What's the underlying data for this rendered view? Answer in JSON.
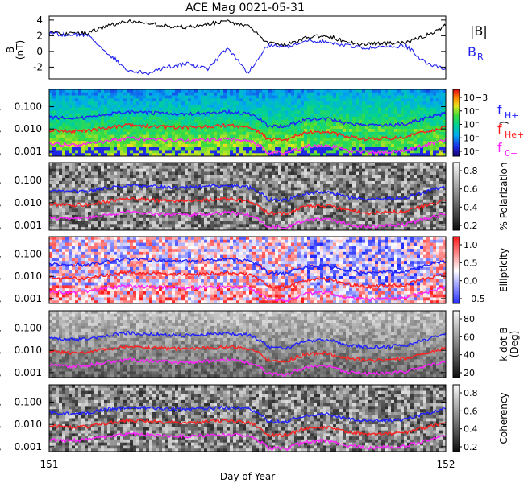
{
  "chart_data": {
    "title": "ACE Mag 0021-05-31",
    "xlabel": "Day of Year",
    "x_range": [
      151,
      152
    ],
    "x_tick_labels": [
      "151",
      "152"
    ],
    "panels": [
      {
        "type": "line",
        "ylabel": "B\n(nT)",
        "ylim": [
          -3.5,
          4.5
        ],
        "y_tick_labels": [
          "4",
          "2",
          "0",
          "-2"
        ],
        "legend": [
          {
            "label": "|B|",
            "color": "#000000"
          },
          {
            "label": "B",
            "sub": "R",
            "color": "#2222ee"
          }
        ],
        "series": [
          {
            "name": "|B|",
            "color": "#000000",
            "x": [
              151.0,
              151.05,
              151.1,
              151.15,
              151.2,
              151.25,
              151.3,
              151.35,
              151.4,
              151.45,
              151.5,
              151.55,
              151.6,
              151.65,
              151.7,
              151.75,
              151.8,
              151.85,
              151.9,
              151.95,
              152.0
            ],
            "y": [
              2.5,
              2.2,
              2.4,
              3.3,
              3.9,
              3.6,
              3.2,
              3.1,
              3.5,
              3.8,
              3.3,
              1.0,
              0.8,
              1.8,
              2.0,
              1.2,
              0.9,
              1.0,
              1.1,
              2.0,
              3.3
            ]
          },
          {
            "name": "B_R",
            "color": "#2222ee",
            "x": [
              151.0,
              151.05,
              151.1,
              151.15,
              151.2,
              151.25,
              151.3,
              151.35,
              151.4,
              151.45,
              151.5,
              151.55,
              151.6,
              151.65,
              151.7,
              151.75,
              151.8,
              151.85,
              151.9,
              151.95,
              152.0
            ],
            "y": [
              2.3,
              2.1,
              2.0,
              -0.3,
              -2.5,
              -2.8,
              -2.0,
              -1.6,
              -2.3,
              0.5,
              -2.8,
              0.7,
              0.6,
              1.5,
              1.2,
              0.8,
              0.4,
              0.5,
              0.7,
              -1.5,
              -2.3
            ]
          }
        ]
      },
      {
        "type": "heatmap",
        "yscale": "log",
        "ylim": [
          0.0006,
          0.6
        ],
        "y_tick_labels": [
          "0.100",
          "0.010",
          "0.001"
        ],
        "colorbar_label": ")",
        "colorbar_tick_labels": [
          "10−3",
          "10⁻",
          "10⁻",
          "10⁻",
          "10⁻"
        ],
        "colormap": "rainbow"
      },
      {
        "type": "heatmap",
        "yscale": "log",
        "ylim": [
          0.0006,
          0.6
        ],
        "y_tick_labels": [
          "0.100",
          "0.010",
          "0.001"
        ],
        "colorbar_label": "% Polarization",
        "colorbar_tick_labels": [
          "0.8",
          "0.6",
          "0.4",
          "0.2"
        ],
        "colormap": "gray"
      },
      {
        "type": "heatmap",
        "yscale": "log",
        "ylim": [
          0.0006,
          0.6
        ],
        "y_tick_labels": [
          "0.100",
          "0.010",
          "0.001"
        ],
        "colorbar_label": "Ellipticity",
        "colorbar_tick_labels": [
          "1.0",
          "0.5",
          "0.0",
          "−0.5"
        ],
        "colormap": "blue-white-red"
      },
      {
        "type": "heatmap",
        "yscale": "log",
        "ylim": [
          0.0006,
          0.6
        ],
        "y_tick_labels": [
          "0.100",
          "0.010",
          "0.001"
        ],
        "colorbar_label": "k dot B\n(Deg)",
        "colorbar_tick_labels": [
          "80",
          "60",
          "40",
          "20"
        ],
        "colormap": "gray"
      },
      {
        "type": "heatmap",
        "yscale": "log",
        "ylim": [
          0.0006,
          0.6
        ],
        "y_tick_labels": [
          "0.100",
          "0.010",
          "0.001"
        ],
        "colorbar_label": "Coherency",
        "colorbar_tick_labels": [
          "0.8",
          "0.6",
          "0.4",
          "0.2"
        ],
        "colormap": "gray"
      }
    ],
    "gyrofrequency_lines": [
      {
        "name": "f",
        "sub": "H+",
        "color": "#2020ff",
        "x": [
          151.0,
          151.05,
          151.1,
          151.15,
          151.2,
          151.25,
          151.3,
          151.35,
          151.4,
          151.45,
          151.5,
          151.55,
          151.6,
          151.65,
          151.7,
          151.75,
          151.8,
          151.85,
          151.9,
          151.95,
          152.0
        ],
        "y": [
          0.035,
          0.031,
          0.033,
          0.048,
          0.06,
          0.055,
          0.049,
          0.047,
          0.053,
          0.058,
          0.05,
          0.014,
          0.013,
          0.027,
          0.03,
          0.018,
          0.014,
          0.015,
          0.017,
          0.03,
          0.05
        ]
      },
      {
        "name": "f",
        "sub": "He+",
        "color": "#ff2020",
        "x": [
          151.0,
          151.05,
          151.1,
          151.15,
          151.2,
          151.25,
          151.3,
          151.35,
          151.4,
          151.45,
          151.5,
          151.55,
          151.6,
          151.65,
          151.7,
          151.75,
          151.8,
          151.85,
          151.9,
          151.95,
          152.0
        ],
        "y": [
          0.0088,
          0.0078,
          0.0083,
          0.012,
          0.015,
          0.0138,
          0.0123,
          0.0118,
          0.0133,
          0.0145,
          0.0125,
          0.0035,
          0.0033,
          0.0068,
          0.0075,
          0.0045,
          0.0035,
          0.0038,
          0.0043,
          0.0075,
          0.0125
        ]
      },
      {
        "name": "f",
        "sub": "0+",
        "color": "#ff22ff",
        "x": [
          151.0,
          151.05,
          151.1,
          151.15,
          151.2,
          151.25,
          151.3,
          151.35,
          151.4,
          151.45,
          151.5,
          151.55,
          151.6,
          151.65,
          151.7,
          151.75,
          151.8,
          151.85,
          151.9,
          151.95,
          152.0
        ],
        "y": [
          0.0022,
          0.0019,
          0.0021,
          0.003,
          0.0038,
          0.0034,
          0.0031,
          0.0029,
          0.0033,
          0.0036,
          0.0031,
          0.0009,
          0.0008,
          0.0017,
          0.0019,
          0.0011,
          0.0009,
          0.00095,
          0.0011,
          0.0019,
          0.0031
        ]
      }
    ]
  },
  "colors": {
    "background": "#ffffff",
    "axis": "#000000",
    "b_total": "#000000",
    "b_r": "#2222ee",
    "f_h": "#2020ff",
    "f_he": "#ff2020",
    "f_o": "#ff22ff"
  }
}
